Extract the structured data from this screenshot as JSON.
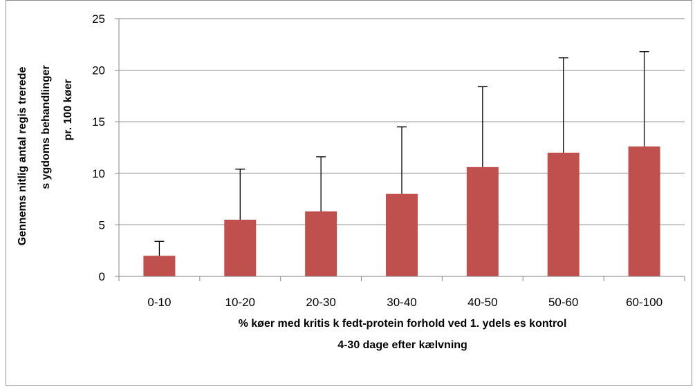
{
  "chart_data": {
    "type": "bar",
    "categories": [
      "0-10",
      "10-20",
      "20-30",
      "30-40",
      "40-50",
      "50-60",
      "60-100"
    ],
    "series": [
      {
        "values": [
          2.0,
          5.5,
          6.3,
          8.0,
          10.6,
          12.0,
          12.6
        ],
        "error_upper": [
          3.4,
          10.4,
          11.6,
          14.5,
          18.4,
          21.2,
          21.8
        ]
      }
    ],
    "xlabel_line1": "% køer med kritis k fedt-protein forhold ved 1. ydels es kontrol",
    "xlabel_line2": "4-30 dage efter kælvning",
    "ylabel_line1": "Gennems nitlig antal regis trerede",
    "ylabel_line2": "s ygdoms behandlinger",
    "ylabel_line3": "pr. 100 køer",
    "ylim": [
      0,
      25
    ],
    "yticks": [
      0,
      5,
      10,
      15,
      20,
      25
    ],
    "grid": true,
    "legend": "none",
    "colors": {
      "bar": "#c0504d",
      "grid": "#868686",
      "error_bar": "#000000"
    }
  }
}
